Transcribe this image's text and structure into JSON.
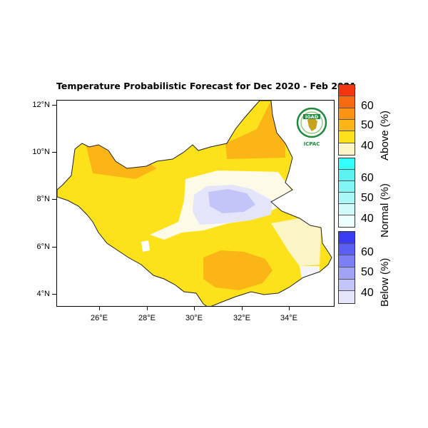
{
  "title": "Temperature Probabilistic Forecast for Dec 2020 - Feb 2021",
  "latitude_labels": [
    "12°N",
    "10°N",
    "8°N",
    "6°N",
    "4°N"
  ],
  "longitude_labels": [
    "26°E",
    "28°E",
    "30°E",
    "32°E",
    "34°E"
  ],
  "map": {
    "lon_range": [
      24.1,
      35.8
    ],
    "lat_range": [
      3.5,
      12.2
    ],
    "region": "South Sudan",
    "outline_color": "#222222"
  },
  "logo": {
    "acronym": "IGAD",
    "name": "ICPAC",
    "ring_color": "#1d8a3c",
    "center_color": "#c8a21e"
  },
  "legend": [
    {
      "category": "Above",
      "title": "Above (%)",
      "labels": [
        "60",
        "50",
        "40"
      ],
      "colors": [
        "#f2340f",
        "#f86a10",
        "#fb9313",
        "#fcb517",
        "#fde21b",
        "#fcf6c6"
      ]
    },
    {
      "category": "Normal",
      "title": "Normal (%)",
      "labels": [
        "60",
        "50",
        "40"
      ],
      "colors": [
        "#33ffff",
        "#5cf2f2",
        "#82f5f5",
        "#aaf7f7",
        "#d1fafa",
        "#ecfefe"
      ]
    },
    {
      "category": "Below",
      "title": "Below (%)",
      "labels": [
        "60",
        "50",
        "40"
      ],
      "colors": [
        "#3a3cf5",
        "#5b5ef2",
        "#7d80f4",
        "#a1a3f6",
        "#c3c5f9",
        "#e4e5fb"
      ]
    }
  ]
}
